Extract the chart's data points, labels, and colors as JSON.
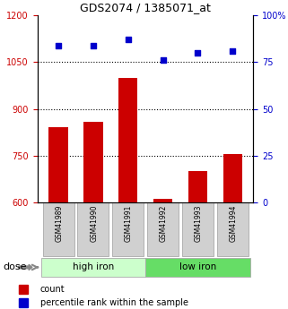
{
  "title": "GDS2074 / 1385071_at",
  "categories": [
    "GSM41989",
    "GSM41990",
    "GSM41991",
    "GSM41992",
    "GSM41993",
    "GSM41994"
  ],
  "bar_values": [
    840,
    860,
    1000,
    610,
    700,
    755
  ],
  "scatter_values": [
    84,
    84,
    87,
    76,
    80,
    81
  ],
  "ylim_left": [
    600,
    1200
  ],
  "ylim_right": [
    0,
    100
  ],
  "yticks_left": [
    600,
    750,
    900,
    1050,
    1200
  ],
  "yticks_right": [
    0,
    25,
    50,
    75,
    100
  ],
  "ytick_labels_right": [
    "0",
    "25",
    "50",
    "75",
    "100%"
  ],
  "hlines": [
    750,
    900,
    1050
  ],
  "bar_color": "#cc0000",
  "scatter_color": "#0000cc",
  "group1_label": "high iron",
  "group2_label": "low iron",
  "group1_indices": [
    0,
    1,
    2
  ],
  "group2_indices": [
    3,
    4,
    5
  ],
  "group1_color": "#ccffcc",
  "group2_color": "#66dd66",
  "tick_box_color": "#d0d0d0",
  "dose_label": "dose",
  "legend_count": "count",
  "legend_percentile": "percentile rank within the sample",
  "bar_width": 0.55,
  "left_tick_color": "#cc0000",
  "right_tick_color": "#0000cc"
}
